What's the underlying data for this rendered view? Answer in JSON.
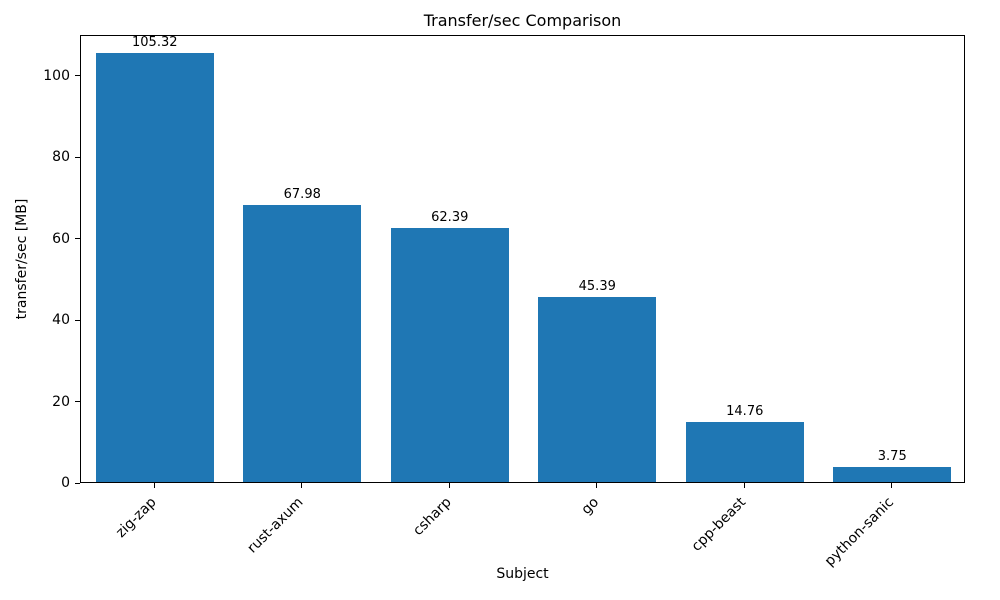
{
  "chart_data": {
    "type": "bar",
    "title": "Transfer/sec Comparison",
    "xlabel": "Subject",
    "ylabel": "transfer/sec [MB]",
    "categories": [
      "zig-zap",
      "rust-axum",
      "csharp",
      "go",
      "cpp-beast",
      "python-sanic"
    ],
    "values": [
      105.32,
      67.98,
      62.39,
      45.39,
      14.76,
      3.75
    ],
    "bar_labels": [
      "105.32",
      "67.98",
      "62.39",
      "45.39",
      "14.76",
      "3.75"
    ],
    "yticks": [
      0,
      20,
      40,
      60,
      80,
      100
    ],
    "ylim": [
      0,
      110
    ],
    "bar_color": "#1f77b4",
    "grid": false,
    "legend": "none"
  }
}
